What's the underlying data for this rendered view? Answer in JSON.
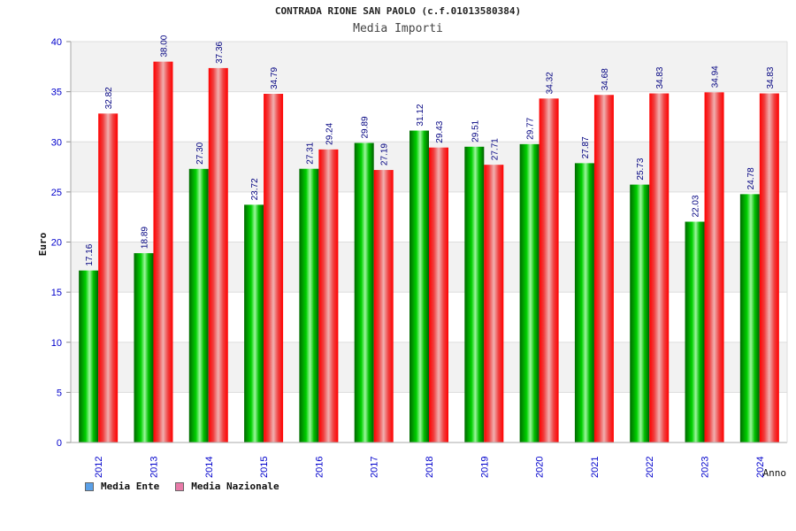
{
  "title": "CONTRADA RIONE SAN PAOLO (c.f.01013580384)",
  "subtitle": "Media Importi",
  "legend": [
    {
      "label": "Media Ente",
      "color": "#5aa0e8"
    },
    {
      "label": "Media Nazionale",
      "color": "#e87aa8"
    }
  ],
  "colors": {
    "ente": "#00b000",
    "nazionale": "#ff1a1a",
    "axis_text": "#0000cc",
    "value_text": "#000080"
  },
  "chart_data": {
    "type": "bar",
    "xlabel": "Anno",
    "ylabel": "Euro",
    "ylim": [
      0,
      40
    ],
    "yticks": [
      0,
      5,
      10,
      15,
      20,
      25,
      30,
      35,
      40
    ],
    "grid": true,
    "categories": [
      "2012",
      "2013",
      "2014",
      "2015",
      "2016",
      "2017",
      "2018",
      "2019",
      "2020",
      "2021",
      "2022",
      "2023",
      "2024"
    ],
    "series": [
      {
        "name": "Media Ente",
        "values": [
          17.16,
          18.89,
          27.3,
          23.72,
          27.31,
          29.89,
          31.12,
          29.51,
          29.77,
          27.87,
          25.73,
          22.03,
          24.78
        ],
        "labels": [
          "17.16",
          "18.89",
          "27.30",
          "23.72",
          "27.31",
          "29.89",
          "31.12",
          "29.51",
          "29.77",
          "27.87",
          "25.73",
          "22.03",
          "24.78"
        ]
      },
      {
        "name": "Media Nazionale",
        "values": [
          32.82,
          38.0,
          37.36,
          34.79,
          29.24,
          27.19,
          29.43,
          27.71,
          34.32,
          34.68,
          34.83,
          34.94,
          34.83
        ],
        "labels": [
          "32.82",
          "38.00",
          "37.36",
          "34.79",
          "29.24",
          "27.19",
          "29.43",
          "27.71",
          "34.32",
          "34.68",
          "34.83",
          "34.94",
          "34.83"
        ]
      }
    ]
  }
}
